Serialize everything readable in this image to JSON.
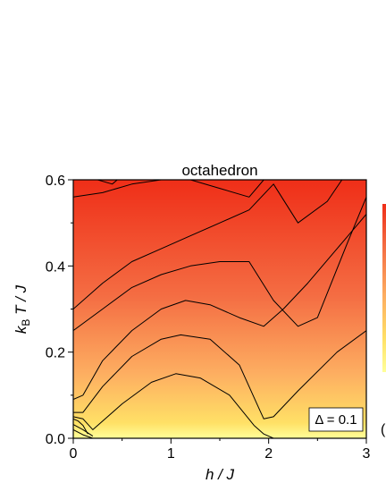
{
  "chart_data": {
    "type": "heatmap",
    "title": "octahedron",
    "xlabel": "h / J",
    "ylabel_main": "k",
    "ylabel_sub": "B",
    "ylabel_rest": " T / J",
    "xlim": [
      0,
      3
    ],
    "ylim": [
      0,
      0.6
    ],
    "x_ticks": [
      0,
      1,
      2,
      3
    ],
    "x_tick_labels": [
      "0",
      "1",
      "2",
      "3"
    ],
    "y_ticks": [
      0.0,
      0.2,
      0.4,
      0.6
    ],
    "y_tick_labels": [
      "0.0",
      "0.2",
      "0.4",
      "0.6"
    ],
    "annotation": "Δ = 0.1",
    "colormap": [
      "#ffff99",
      "#ffe066",
      "#fdae61",
      "#f46d43",
      "#ef2e18"
    ],
    "colorbar_partial_label": "(",
    "contours": [
      {
        "x": [
          0,
          0.1,
          0.2
        ],
        "y": [
          0.02,
          0.008,
          0.0
        ]
      },
      {
        "x": [
          0,
          0.1,
          0.2
        ],
        "y": [
          0.032,
          0.02,
          0.005
        ]
      },
      {
        "x": [
          0,
          0.05,
          0.1,
          0.15
        ],
        "y": [
          0.045,
          0.04,
          0.03,
          0.01
        ]
      },
      {
        "x": [
          0,
          0.1,
          0.2,
          0.5,
          0.8,
          1.05,
          1.3,
          1.6,
          1.85,
          1.95,
          2.05
        ],
        "y": [
          0.05,
          0.045,
          0.02,
          0.08,
          0.13,
          0.15,
          0.14,
          0.1,
          0.03,
          0.01,
          0.0
        ]
      },
      {
        "x": [
          0,
          0.1,
          0.3,
          0.6,
          0.9,
          1.1,
          1.4,
          1.7,
          1.9,
          1.95,
          2.05,
          2.3,
          2.7,
          3.0
        ],
        "y": [
          0.06,
          0.06,
          0.12,
          0.19,
          0.23,
          0.24,
          0.23,
          0.17,
          0.07,
          0.045,
          0.05,
          0.11,
          0.2,
          0.25
        ]
      },
      {
        "x": [
          0,
          0.1,
          0.3,
          0.6,
          0.9,
          1.15,
          1.4,
          1.7,
          1.95,
          2.15,
          2.4,
          2.7,
          3.0
        ],
        "y": [
          0.09,
          0.1,
          0.18,
          0.25,
          0.3,
          0.32,
          0.31,
          0.28,
          0.26,
          0.3,
          0.36,
          0.44,
          0.52
        ]
      },
      {
        "x": [
          0,
          0.3,
          0.6,
          0.9,
          1.2,
          1.5,
          1.8,
          2.05,
          2.3,
          2.5,
          2.8,
          3.0
        ],
        "y": [
          0.25,
          0.3,
          0.35,
          0.38,
          0.4,
          0.41,
          0.41,
          0.32,
          0.26,
          0.28,
          0.45,
          0.56
        ]
      },
      {
        "x": [
          0,
          0.3,
          0.6,
          0.9,
          1.2,
          1.5,
          1.8,
          2.05,
          2.3,
          2.6,
          2.75
        ],
        "y": [
          0.3,
          0.36,
          0.41,
          0.44,
          0.47,
          0.5,
          0.53,
          0.59,
          0.5,
          0.55,
          0.6
        ]
      },
      {
        "x": [
          0,
          0.3,
          0.6,
          0.9,
          1.2,
          1.5,
          1.8,
          1.95
        ],
        "y": [
          0.56,
          0.57,
          0.59,
          0.6,
          0.6,
          0.58,
          0.56,
          0.6
        ]
      },
      {
        "x": [
          0.25,
          0.4,
          0.45
        ],
        "y": [
          0.6,
          0.59,
          0.6
        ]
      }
    ]
  }
}
